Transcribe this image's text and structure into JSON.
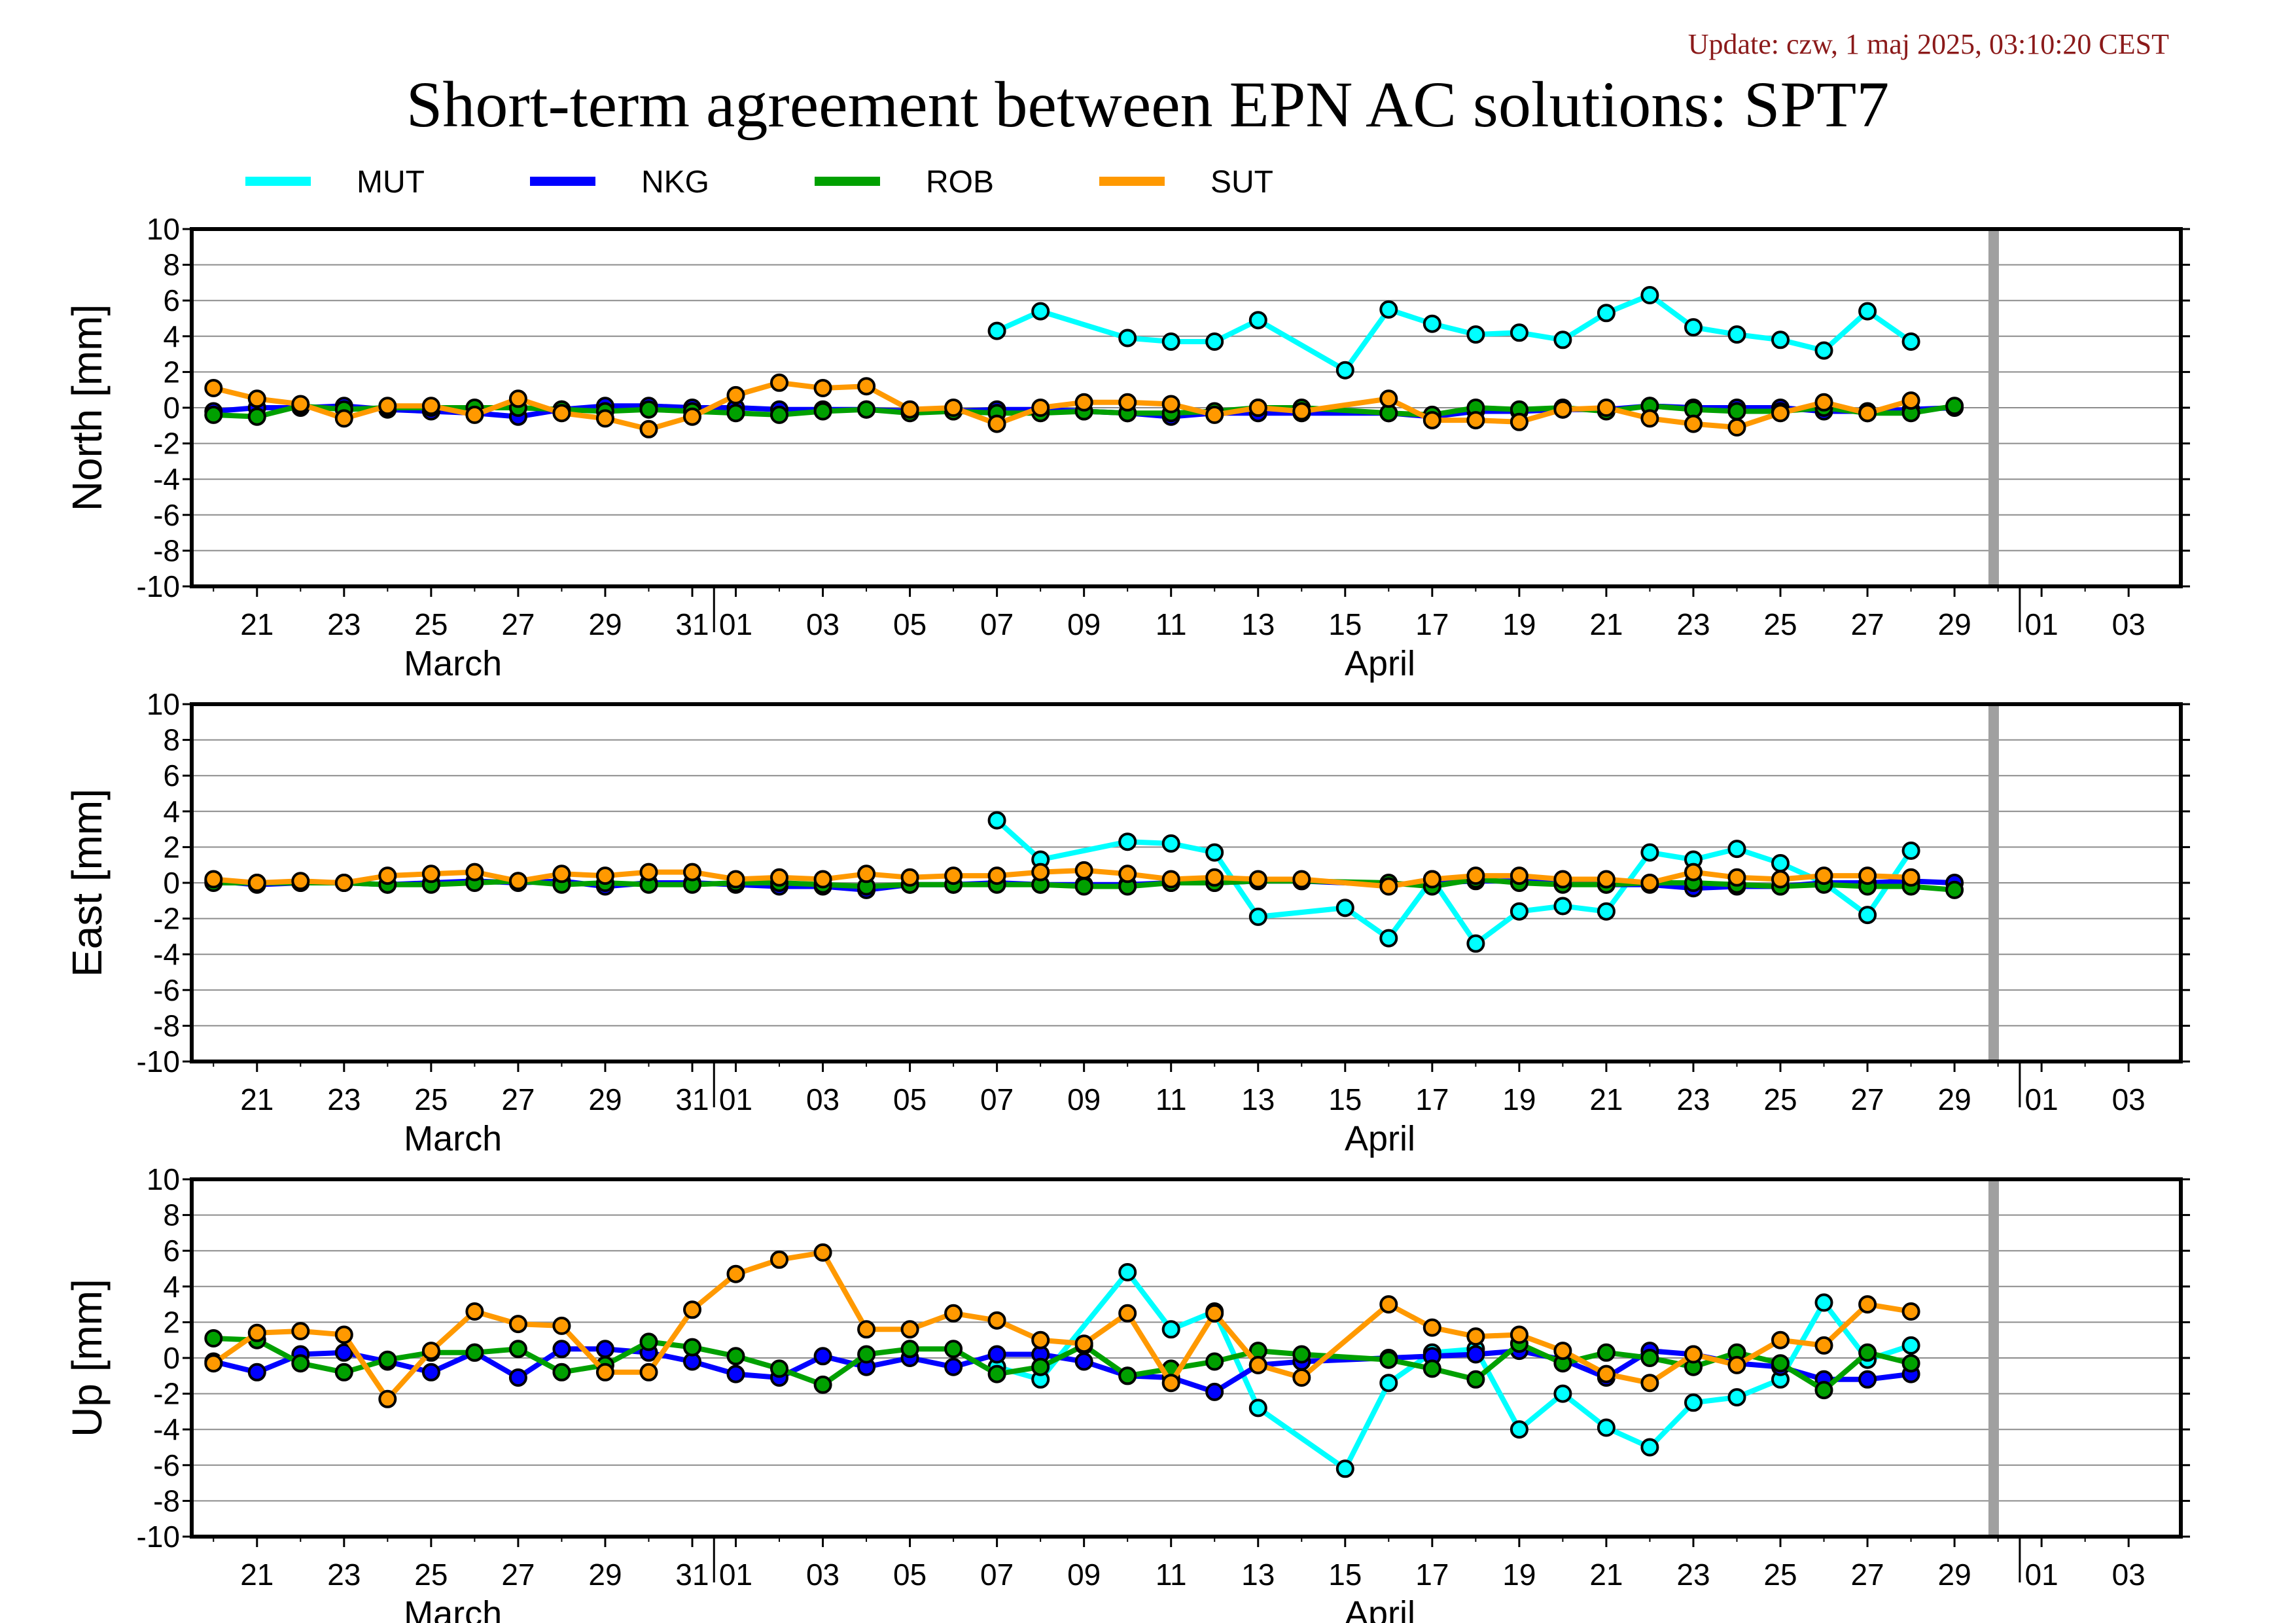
{
  "update_text": "Update: czw, 1 maj 2025, 03:10:20 CEST",
  "chart_data": {
    "type": "line",
    "title": "Short-term agreement between EPN AC solutions: SPT7",
    "legend": {
      "position": "top",
      "entries": [
        {
          "name": "MUT",
          "color": "#00ffff"
        },
        {
          "name": "NKG",
          "color": "#0000ff"
        },
        {
          "name": "ROB",
          "color": "#00a000"
        },
        {
          "name": "SUT",
          "color": "#ff9900"
        }
      ]
    },
    "x_ticks": [
      "21",
      "23",
      "25",
      "27",
      "29",
      "31",
      "01",
      "03",
      "05",
      "07",
      "09",
      "11",
      "13",
      "15",
      "17",
      "19",
      "21",
      "23",
      "25",
      "27",
      "29",
      "01",
      "03"
    ],
    "x_tick_days": [
      1,
      3,
      5,
      7,
      9,
      11,
      12,
      14,
      16,
      18,
      20,
      22,
      24,
      26,
      28,
      30,
      32,
      34,
      36,
      38,
      40,
      42,
      44
    ],
    "x_months": [
      {
        "label": "March",
        "day": 5.5
      },
      {
        "label": "April",
        "day": 26.8
      }
    ],
    "xlim": [
      -0.5,
      45.2
    ],
    "day_note_zero_is": "2025-03-20",
    "vline_day": 40.9,
    "ylim": [
      -10,
      10
    ],
    "yticks": [
      "10",
      "8",
      "6",
      "4",
      "2",
      "0",
      "-2",
      "-4",
      "-6",
      "-8",
      "-10"
    ],
    "panels": [
      {
        "ylabel": "North [mm]",
        "series": [
          {
            "name": "MUT",
            "x": [
              18,
              19,
              21,
              22,
              23,
              24,
              26,
              27,
              28,
              29,
              30,
              31,
              32,
              33,
              34,
              35,
              36,
              37,
              38,
              39,
              40
            ],
            "y": [
              4.3,
              5.4,
              3.9,
              3.7,
              3.7,
              4.9,
              2.1,
              5.5,
              4.7,
              4.1,
              4.2,
              3.8,
              5.3,
              6.3,
              4.5,
              4.1,
              3.8,
              3.2,
              5.4,
              3.7,
              null
            ]
          },
          {
            "name": "NKG",
            "x": [
              0,
              1,
              2,
              3,
              4,
              5,
              6,
              7,
              8,
              9,
              10,
              11,
              12,
              13,
              14,
              15,
              16,
              17,
              18,
              19,
              20,
              21,
              22,
              23,
              24,
              25,
              27,
              28,
              29,
              30,
              31,
              32,
              33,
              34,
              35,
              36,
              37,
              38,
              39,
              40
            ],
            "y": [
              -0.2,
              0,
              0,
              0.1,
              -0.1,
              -0.2,
              -0.3,
              -0.5,
              -0.1,
              0.1,
              0.1,
              0,
              0,
              -0.1,
              -0.1,
              -0.1,
              -0.2,
              -0.2,
              -0.1,
              -0.1,
              -0.2,
              -0.3,
              -0.5,
              -0.3,
              -0.3,
              -0.3,
              -0.3,
              -0.5,
              -0.2,
              -0.2,
              -0.1,
              -0.1,
              0.1,
              0,
              0,
              0,
              -0.2,
              -0.2,
              -0.1,
              0
            ]
          },
          {
            "name": "ROB",
            "x": [
              0,
              1,
              2,
              3,
              4,
              5,
              6,
              7,
              8,
              9,
              10,
              11,
              12,
              13,
              14,
              15,
              16,
              17,
              18,
              19,
              20,
              21,
              22,
              23,
              24,
              25,
              27,
              28,
              29,
              30,
              31,
              32,
              33,
              34,
              35,
              36,
              37,
              38,
              39,
              40
            ],
            "y": [
              -0.4,
              -0.5,
              0.1,
              -0.1,
              0,
              0,
              0,
              0,
              -0.1,
              -0.2,
              -0.1,
              -0.2,
              -0.3,
              -0.4,
              -0.2,
              -0.1,
              -0.3,
              -0.2,
              -0.3,
              -0.3,
              -0.2,
              -0.3,
              -0.3,
              -0.2,
              0,
              0,
              -0.3,
              -0.4,
              0,
              -0.1,
              0,
              -0.2,
              0.1,
              -0.1,
              -0.2,
              -0.2,
              0,
              -0.3,
              -0.3,
              0.1
            ]
          },
          {
            "name": "SUT",
            "x": [
              0,
              1,
              2,
              3,
              4,
              5,
              6,
              7,
              8,
              9,
              10,
              11,
              12,
              13,
              14,
              15,
              16,
              17,
              18,
              19,
              20,
              21,
              22,
              23,
              24,
              25,
              27,
              28,
              29,
              30,
              31,
              32,
              33,
              34,
              35,
              36,
              37,
              38,
              39,
              40
            ],
            "y": [
              1.1,
              0.5,
              0.2,
              -0.6,
              0.1,
              0.1,
              -0.4,
              0.5,
              -0.3,
              -0.6,
              -1.2,
              -0.5,
              0.7,
              1.4,
              1.1,
              1.2,
              -0.1,
              0,
              -0.9,
              0,
              0.3,
              0.3,
              0.2,
              -0.4,
              0,
              -0.2,
              0.5,
              -0.7,
              -0.7,
              -0.8,
              -0.1,
              0,
              -0.6,
              -0.9,
              -1.1,
              -0.3,
              0.3,
              -0.3,
              0.4,
              null
            ]
          }
        ]
      },
      {
        "ylabel": "East [mm]",
        "series": [
          {
            "name": "MUT",
            "x": [
              18,
              19,
              21,
              22,
              23,
              24,
              26,
              27,
              28,
              29,
              30,
              31,
              32,
              33,
              34,
              35,
              36,
              37,
              38,
              39,
              40
            ],
            "y": [
              3.5,
              1.3,
              2.3,
              2.2,
              1.7,
              -1.9,
              -1.4,
              -3.1,
              0.2,
              -3.4,
              -1.6,
              -1.3,
              -1.6,
              1.7,
              1.3,
              1.9,
              1.1,
              0,
              -1.8,
              1.8,
              null
            ]
          },
          {
            "name": "NKG",
            "x": [
              0,
              1,
              2,
              3,
              4,
              5,
              6,
              7,
              8,
              9,
              10,
              11,
              12,
              13,
              14,
              15,
              16,
              17,
              18,
              19,
              20,
              21,
              22,
              23,
              24,
              25,
              27,
              28,
              29,
              30,
              31,
              32,
              33,
              34,
              35,
              36,
              37,
              38,
              39,
              40
            ],
            "y": [
              0.1,
              -0.1,
              0,
              0,
              -0.1,
              0,
              0.1,
              0,
              0.1,
              -0.2,
              0,
              0,
              -0.1,
              -0.2,
              -0.2,
              -0.4,
              -0.1,
              -0.1,
              0,
              -0.1,
              -0.1,
              -0.1,
              0,
              0,
              0.1,
              0.1,
              -0.1,
              0,
              0.1,
              0.1,
              0,
              -0.1,
              -0.1,
              -0.3,
              -0.2,
              -0.2,
              0,
              0,
              0.1,
              0
            ]
          },
          {
            "name": "ROB",
            "x": [
              0,
              1,
              2,
              3,
              4,
              5,
              6,
              7,
              8,
              9,
              10,
              11,
              12,
              13,
              14,
              15,
              16,
              17,
              18,
              19,
              20,
              21,
              22,
              23,
              24,
              25,
              27,
              28,
              29,
              30,
              31,
              32,
              33,
              34,
              35,
              36,
              37,
              38,
              39,
              40
            ],
            "y": [
              0,
              0,
              0,
              0,
              -0.1,
              -0.1,
              0,
              0.1,
              -0.1,
              0,
              -0.1,
              -0.1,
              0,
              0,
              -0.1,
              -0.2,
              -0.1,
              -0.1,
              -0.1,
              -0.1,
              -0.2,
              -0.2,
              0,
              0,
              0.1,
              0.1,
              0,
              -0.2,
              0.2,
              0,
              -0.1,
              -0.1,
              0,
              0,
              -0.1,
              -0.2,
              -0.1,
              -0.2,
              -0.2,
              -0.4
            ]
          },
          {
            "name": "SUT",
            "x": [
              0,
              1,
              2,
              3,
              4,
              5,
              6,
              7,
              8,
              9,
              10,
              11,
              12,
              13,
              14,
              15,
              16,
              17,
              18,
              19,
              20,
              21,
              22,
              23,
              24,
              25,
              27,
              28,
              29,
              30,
              31,
              32,
              33,
              34,
              35,
              36,
              37,
              38,
              39,
              40
            ],
            "y": [
              0.2,
              0,
              0.1,
              0,
              0.4,
              0.5,
              0.6,
              0.1,
              0.5,
              0.4,
              0.6,
              0.6,
              0.2,
              0.3,
              0.2,
              0.5,
              0.3,
              0.4,
              0.4,
              0.6,
              0.7,
              0.5,
              0.2,
              0.3,
              0.2,
              0.2,
              -0.2,
              0.2,
              0.4,
              0.4,
              0.2,
              0.2,
              0,
              0.6,
              0.3,
              0.2,
              0.4,
              0.4,
              0.3,
              null
            ]
          }
        ]
      },
      {
        "ylabel": "Up [mm]",
        "series": [
          {
            "name": "MUT",
            "x": [
              18,
              19,
              21,
              22,
              23,
              24,
              26,
              27,
              28,
              29,
              30,
              31,
              32,
              33,
              34,
              35,
              36,
              37,
              38,
              39,
              40
            ],
            "y": [
              -0.5,
              -1.2,
              4.8,
              1.6,
              2.6,
              -2.8,
              -6.2,
              -1.4,
              0.3,
              0.5,
              -4,
              -2,
              -3.9,
              -5,
              -2.5,
              -2.2,
              -1.2,
              3.1,
              -0.1,
              0.7,
              null
            ]
          },
          {
            "name": "NKG",
            "x": [
              0,
              1,
              2,
              3,
              4,
              5,
              6,
              7,
              8,
              9,
              10,
              11,
              12,
              13,
              14,
              15,
              16,
              17,
              18,
              19,
              20,
              21,
              22,
              23,
              24,
              25,
              27,
              28,
              29,
              30,
              31,
              32,
              33,
              34,
              35,
              36,
              37,
              38,
              39,
              40
            ],
            "y": [
              -0.2,
              -0.8,
              0.2,
              0.3,
              -0.2,
              -0.8,
              0.3,
              -1.1,
              0.5,
              0.5,
              0.3,
              -0.2,
              -0.9,
              -1.1,
              0.1,
              -0.5,
              0,
              -0.5,
              0.2,
              0.2,
              -0.2,
              -1,
              -1.1,
              -1.9,
              -0.4,
              -0.2,
              0,
              0.1,
              0.2,
              0.4,
              -0.1,
              -1.1,
              0.4,
              0.2,
              -0.3,
              -0.5,
              -1.2,
              -1.2,
              -0.9,
              null
            ]
          },
          {
            "name": "ROB",
            "x": [
              0,
              1,
              2,
              3,
              4,
              5,
              6,
              7,
              8,
              9,
              10,
              11,
              12,
              13,
              14,
              15,
              16,
              17,
              18,
              19,
              20,
              21,
              22,
              23,
              24,
              25,
              27,
              28,
              29,
              30,
              31,
              32,
              33,
              34,
              35,
              36,
              37,
              38,
              39,
              40
            ],
            "y": [
              1.1,
              1,
              -0.3,
              -0.8,
              -0.1,
              0.3,
              0.3,
              0.5,
              -0.8,
              -0.4,
              0.9,
              0.6,
              0.1,
              -0.6,
              -1.5,
              0.2,
              0.5,
              0.5,
              -0.9,
              -0.5,
              0.7,
              -1,
              -0.6,
              -0.2,
              0.4,
              0.2,
              -0.1,
              -0.6,
              -1.2,
              0.8,
              -0.3,
              0.3,
              0,
              -0.5,
              0.3,
              -0.3,
              -1.8,
              0.3,
              -0.3,
              null
            ]
          },
          {
            "name": "SUT",
            "x": [
              0,
              1,
              2,
              3,
              4,
              5,
              6,
              7,
              8,
              9,
              10,
              11,
              12,
              13,
              14,
              15,
              16,
              17,
              18,
              19,
              20,
              21,
              22,
              23,
              24,
              25,
              27,
              28,
              29,
              30,
              31,
              32,
              33,
              34,
              35,
              36,
              37,
              38,
              39,
              40
            ],
            "y": [
              -0.3,
              1.4,
              1.5,
              1.3,
              -2.3,
              0.4,
              2.6,
              1.9,
              1.8,
              -0.8,
              -0.8,
              2.7,
              4.7,
              5.5,
              5.9,
              1.6,
              1.6,
              2.5,
              2.1,
              1,
              0.8,
              2.5,
              -1.4,
              2.5,
              -0.4,
              -1.1,
              3,
              1.7,
              1.2,
              1.3,
              0.4,
              -0.9,
              -1.4,
              0.2,
              -0.4,
              1,
              0.7,
              3,
              2.6,
              null
            ]
          }
        ]
      }
    ]
  }
}
